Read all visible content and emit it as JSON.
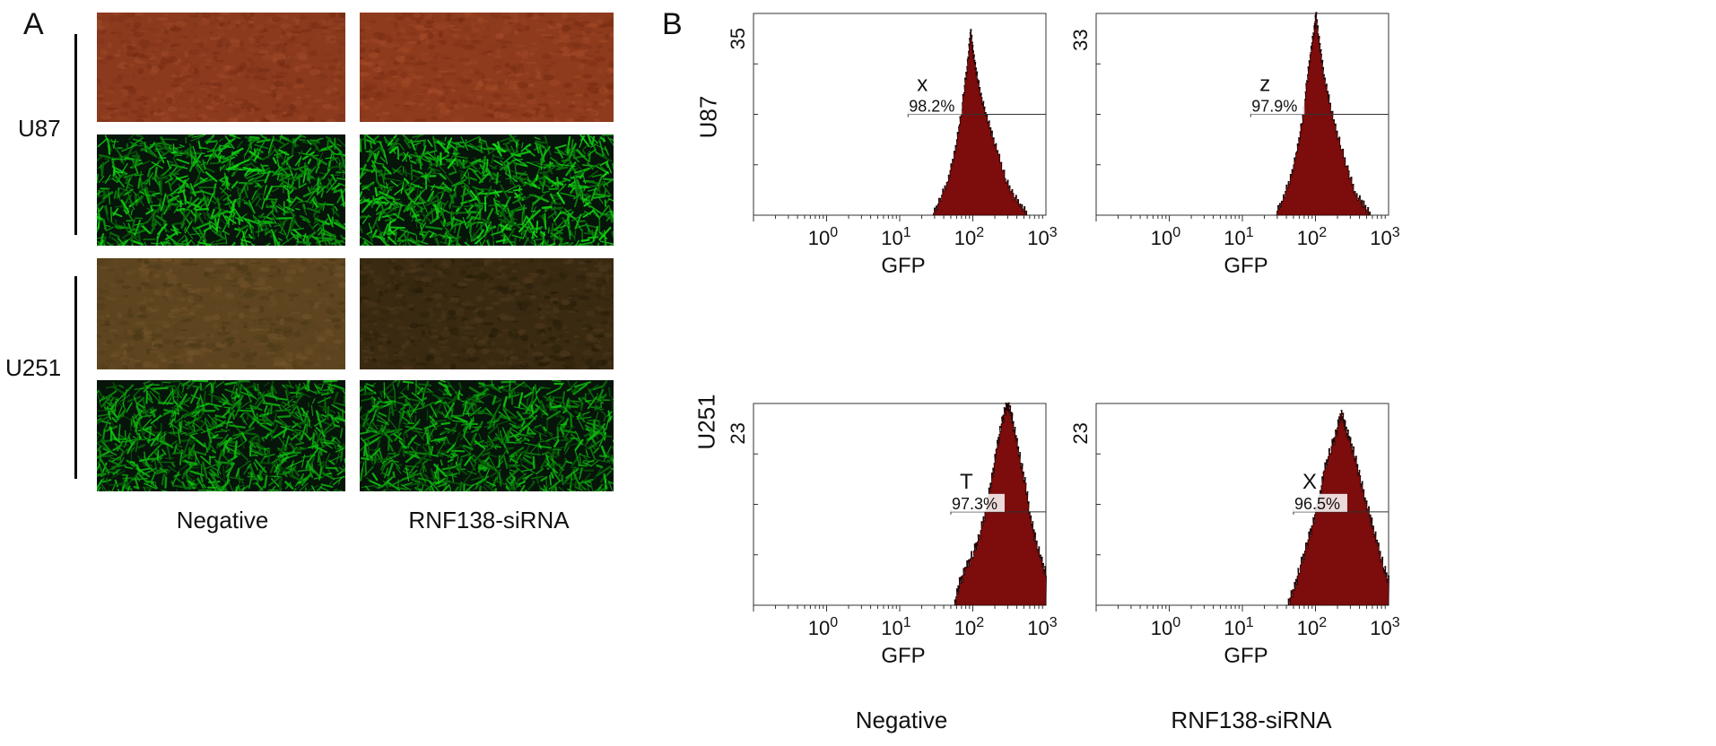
{
  "panel_a": {
    "letter": "A",
    "rows": [
      "U87",
      "U251"
    ],
    "columns": [
      "Negative",
      "RNF138-siRNA"
    ],
    "images": [
      {
        "row": "U87",
        "column": "Negative",
        "kind": "bright-field",
        "tint": "#8b3a1e"
      },
      {
        "row": "U87",
        "column": "RNF138-siRNA",
        "kind": "bright-field",
        "tint": "#8e3b1d"
      },
      {
        "row": "U87",
        "column": "Negative",
        "kind": "gfp-fluorescence",
        "tint": "#1fa21f"
      },
      {
        "row": "U87",
        "column": "RNF138-siRNA",
        "kind": "gfp-fluorescence",
        "tint": "#22a822"
      },
      {
        "row": "U251",
        "column": "Negative",
        "kind": "bright-field",
        "tint": "#5e4520"
      },
      {
        "row": "U251",
        "column": "RNF138-siRNA",
        "kind": "bright-field",
        "tint": "#3a2a12"
      },
      {
        "row": "U251",
        "column": "Negative",
        "kind": "gfp-fluorescence",
        "tint": "#1b8f1b"
      },
      {
        "row": "U251",
        "column": "RNF138-siRNA",
        "kind": "gfp-fluorescence",
        "tint": "#1c951c"
      }
    ]
  },
  "panel_b": {
    "letter": "B",
    "rows": [
      "U87",
      "U251"
    ],
    "columns": [
      "Negative",
      "RNF138-siRNA"
    ]
  },
  "chart_data": [
    {
      "type": "area",
      "row": "U87",
      "column": "Negative",
      "xlabel": "GFP",
      "x_scale": "log",
      "xlim": [
        0.1,
        1000
      ],
      "x_ticks": [
        "10^0",
        "10^1",
        "10^2",
        "10^3"
      ],
      "y_max_label": "35",
      "ylim": [
        0,
        40
      ],
      "gate_letter": "x",
      "gate_percent": "98.2%",
      "gate_y": 20,
      "gate_x_start": 13,
      "fill_color": "#7d0c0c",
      "histogram": {
        "x": [
          28,
          35,
          45,
          55,
          65,
          75,
          85,
          92,
          98,
          105,
          115,
          130,
          150,
          180,
          220,
          280,
          350,
          450,
          560
        ],
        "y": [
          0,
          3,
          7,
          12,
          18,
          25,
          31,
          37,
          33,
          30,
          27,
          23,
          20,
          16,
          12,
          7,
          4,
          2,
          0
        ]
      }
    },
    {
      "type": "area",
      "row": "U87",
      "column": "RNF138-siRNA",
      "xlabel": "GFP",
      "x_scale": "log",
      "xlim": [
        0.1,
        1000
      ],
      "x_ticks": [
        "10^0",
        "10^1",
        "10^2",
        "10^3"
      ],
      "y_max_label": "33",
      "ylim": [
        0,
        38
      ],
      "gate_letter": "z",
      "gate_percent": "97.9%",
      "gate_y": 19,
      "gate_x_start": 13,
      "fill_color": "#7d0c0c",
      "histogram": {
        "x": [
          28,
          35,
          45,
          55,
          65,
          75,
          85,
          95,
          100,
          108,
          118,
          130,
          150,
          180,
          220,
          280,
          350,
          450,
          560
        ],
        "y": [
          0,
          3,
          7,
          12,
          18,
          25,
          31,
          35,
          38,
          34,
          30,
          26,
          22,
          17,
          13,
          8,
          4,
          2,
          0
        ]
      }
    },
    {
      "type": "area",
      "row": "U251",
      "column": "Negative",
      "xlabel": "GFP",
      "x_scale": "log",
      "xlim": [
        0.1,
        1000
      ],
      "x_ticks": [
        "10^0",
        "10^1",
        "10^2",
        "10^3"
      ],
      "y_max_label": "23",
      "ylim": [
        0,
        27
      ],
      "gate_letter": "T",
      "gate_percent": "97.3%",
      "gate_y": 12.5,
      "gate_x_start": 50,
      "fill_color": "#7d0c0c",
      "histogram": {
        "x": [
          55,
          65,
          80,
          100,
          120,
          150,
          180,
          210,
          240,
          270,
          300,
          340,
          390,
          450,
          520,
          600,
          700,
          850,
          1000
        ],
        "y": [
          0,
          3,
          5,
          7,
          9,
          13,
          17,
          21,
          24,
          26,
          27,
          25,
          22,
          19,
          16,
          12,
          9,
          6,
          4
        ]
      }
    },
    {
      "type": "area",
      "row": "U251",
      "column": "RNF138-siRNA",
      "xlabel": "GFP",
      "x_scale": "log",
      "xlim": [
        0.1,
        1000
      ],
      "x_ticks": [
        "10^0",
        "10^1",
        "10^2",
        "10^3"
      ],
      "y_max_label": "23",
      "ylim": [
        0,
        27
      ],
      "gate_letter": "X",
      "gate_percent": "96.5%",
      "gate_y": 12.5,
      "gate_x_start": 50,
      "fill_color": "#7d0c0c",
      "histogram": {
        "x": [
          40,
          50,
          60,
          75,
          90,
          110,
          130,
          160,
          190,
          220,
          250,
          290,
          340,
          400,
          480,
          580,
          700,
          850,
          1000
        ],
        "y": [
          0,
          2,
          5,
          8,
          11,
          14,
          18,
          21,
          23,
          26,
          24,
          22,
          20,
          17,
          14,
          11,
          8,
          5,
          3
        ]
      }
    }
  ]
}
